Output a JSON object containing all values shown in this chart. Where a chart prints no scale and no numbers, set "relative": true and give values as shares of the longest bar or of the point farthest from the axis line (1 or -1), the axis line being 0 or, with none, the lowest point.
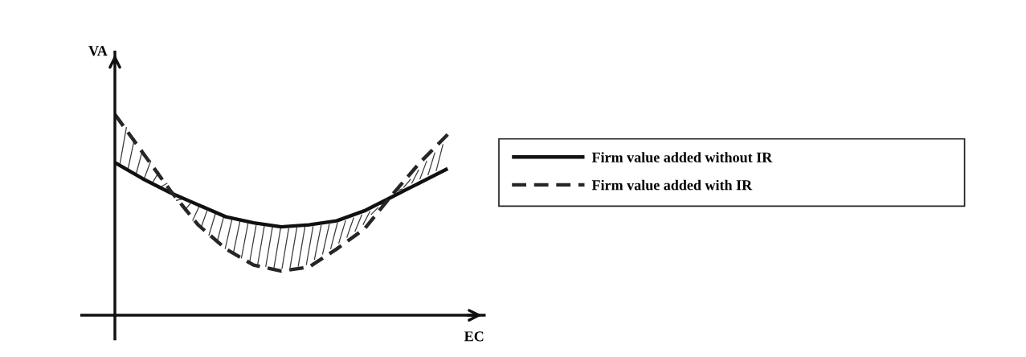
{
  "chart_data": {
    "type": "line",
    "relative": true,
    "xlabel": "EC",
    "ylabel": "VA",
    "legend": "right",
    "marker": "none",
    "categories": [
      null,
      null,
      null,
      null,
      null,
      null,
      null,
      null,
      null,
      null,
      null,
      null,
      null
    ],
    "series": [
      {
        "name": "Firm value added without IR",
        "color": "#111111",
        "line_style": "solid",
        "values": [
          0.76,
          0.68,
          0.61,
          0.55,
          0.49,
          0.46,
          0.44,
          0.45,
          0.47,
          0.52,
          0.59,
          0.66,
          0.73
        ]
      },
      {
        "name": "Firm value added with IR",
        "color": "#262626",
        "line_style": "dashed",
        "values": [
          1.0,
          0.81,
          0.62,
          0.45,
          0.33,
          0.25,
          0.22,
          0.24,
          0.33,
          0.43,
          0.6,
          0.76,
          0.9
        ]
      }
    ]
  }
}
